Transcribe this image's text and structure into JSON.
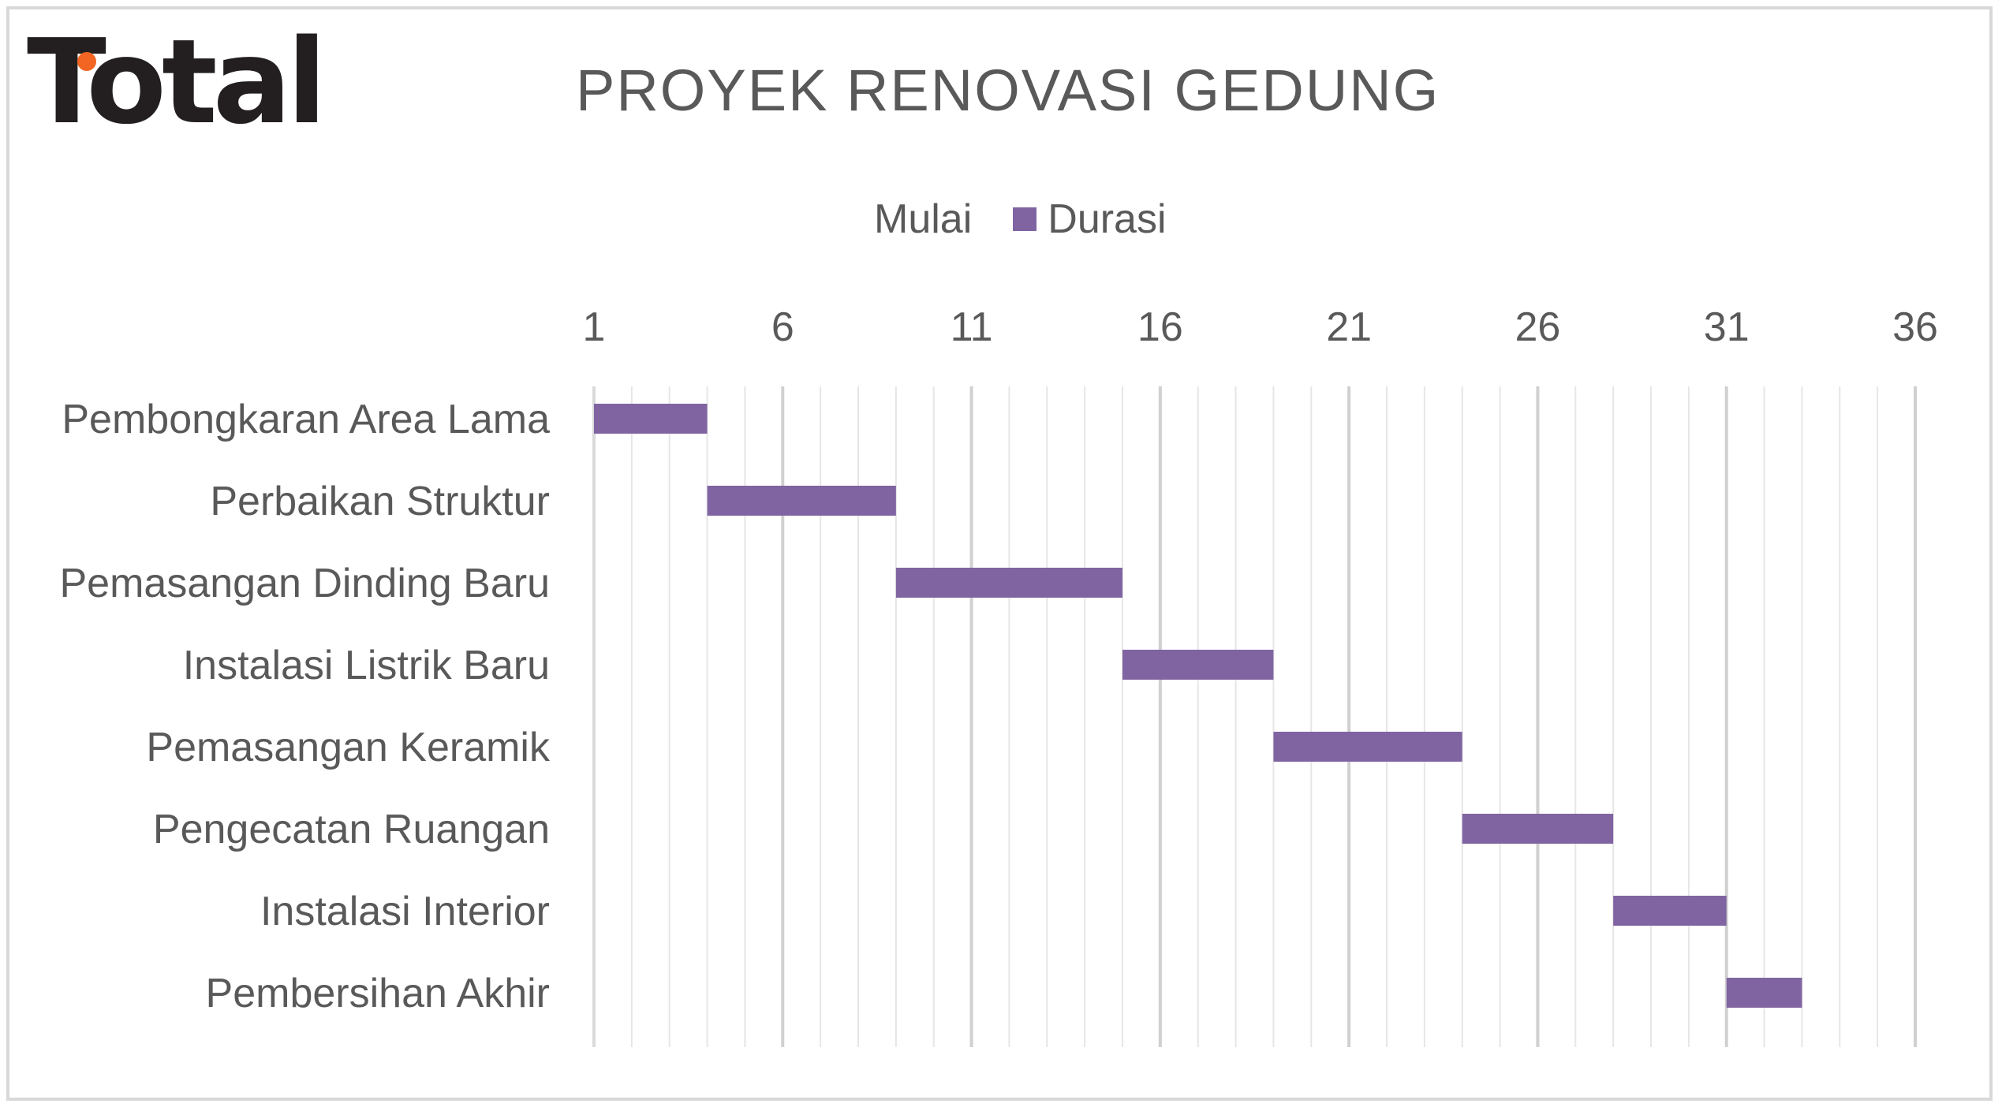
{
  "logo": {
    "text": "Total",
    "accent_color": "#f26522"
  },
  "chart_data": {
    "type": "bar",
    "orientation": "horizontal-stacked-gantt",
    "title": "PROYEK RENOVASI GEDUNG",
    "xlabel": "",
    "ylabel": "",
    "legend": {
      "position": "top",
      "entries": [
        {
          "name": "Mulai",
          "visible_fill": false
        },
        {
          "name": "Durasi",
          "color": "#8064a2"
        }
      ]
    },
    "xlim": [
      1,
      36
    ],
    "xticks": [
      1,
      6,
      11,
      16,
      21,
      26,
      31,
      36
    ],
    "minor_gridline_step": 1,
    "grid": true,
    "categories": [
      "Pembongkaran Area Lama",
      "Perbaikan Struktur",
      "Pemasangan Dinding Baru",
      "Instalasi Listrik Baru",
      "Pemasangan Keramik",
      "Pengecatan Ruangan",
      "Instalasi Interior",
      "Pembersihan Akhir"
    ],
    "series": [
      {
        "name": "Mulai",
        "values": [
          1,
          4,
          9,
          15,
          19,
          24,
          28,
          31
        ]
      },
      {
        "name": "Durasi",
        "values": [
          3,
          5,
          6,
          4,
          5,
          4,
          3,
          2
        ]
      }
    ]
  }
}
